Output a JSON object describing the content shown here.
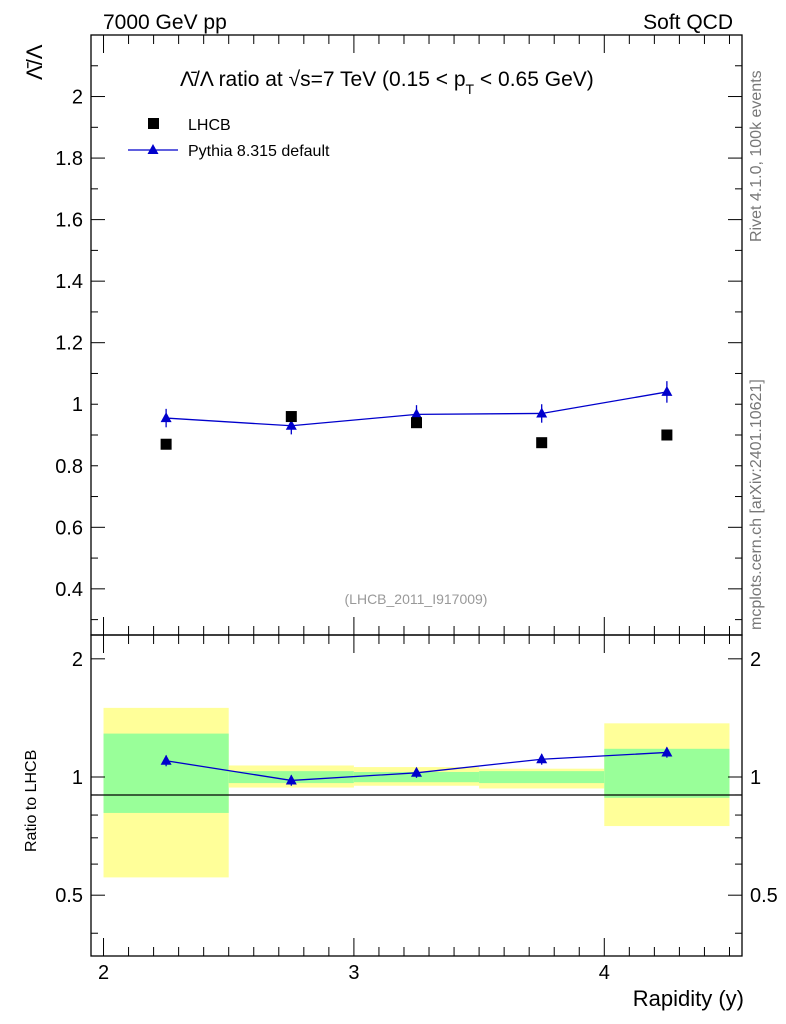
{
  "header": {
    "left": "7000 GeV pp",
    "right": "Soft QCD"
  },
  "side_labels": {
    "rivet": "Rivet 4.1.0,  100k events",
    "mcplots": "mcplots.cern.ch [arXiv:2401.10621]"
  },
  "chart_data": [
    {
      "type": "scatter",
      "title_main": "Λ̄/Λ ratio at √s=7 TeV (0.15 < p",
      "title_sub": "T",
      "title_end": " < 0.65 GeV)",
      "ylabel": "Λ̄/Λ",
      "watermark": "(LHCB_2011_I917009)",
      "xlim": [
        1.95,
        4.55
      ],
      "ylim": [
        0.25,
        2.2
      ],
      "yticks": [
        0.4,
        0.6,
        0.8,
        1,
        1.2,
        1.4,
        1.6,
        1.8,
        2
      ],
      "ytick_labels": [
        "0.4",
        "0.6",
        "0.8",
        "1",
        "1.2",
        "1.4",
        "1.6",
        "1.8",
        "2"
      ],
      "legend": [
        {
          "name": "LHCB",
          "marker": "square"
        },
        {
          "name": "Pythia 8.315 default",
          "marker": "triangle"
        }
      ],
      "series": [
        {
          "name": "LHCB",
          "color": "#000000",
          "x": [
            2.25,
            2.75,
            3.25,
            3.75,
            4.25
          ],
          "y": [
            0.87,
            0.96,
            0.94,
            0.875,
            0.9
          ]
        },
        {
          "name": "Pythia 8.315 default",
          "color": "#0000cc",
          "x": [
            2.25,
            2.75,
            3.25,
            3.75,
            4.25
          ],
          "y": [
            0.955,
            0.93,
            0.967,
            0.97,
            1.04
          ],
          "yerr": [
            0.03,
            0.028,
            0.03,
            0.03,
            0.035
          ]
        }
      ]
    },
    {
      "type": "scatter",
      "ylabel": "Ratio to LHCB",
      "xlabel": "Rapidity (y)",
      "xlim": [
        1.95,
        4.55
      ],
      "ylim": [
        0.35,
        2.3
      ],
      "yscale": "log",
      "xticks": [
        2,
        3,
        4
      ],
      "xtick_labels": [
        "2",
        "3",
        "4"
      ],
      "yticks": [
        0.5,
        1,
        2
      ],
      "ytick_labels": [
        "0.5",
        "1",
        "2"
      ],
      "bands": [
        {
          "x0": 2.0,
          "x1": 2.5,
          "green": [
            0.81,
            1.29
          ],
          "yellow": [
            0.555,
            1.5
          ]
        },
        {
          "x0": 2.5,
          "x1": 3.0,
          "green": [
            0.965,
            1.035
          ],
          "yellow": [
            0.94,
            1.07
          ]
        },
        {
          "x0": 3.0,
          "x1": 3.5,
          "green": [
            0.97,
            1.03
          ],
          "yellow": [
            0.95,
            1.06
          ]
        },
        {
          "x0": 3.5,
          "x1": 4.0,
          "green": [
            0.965,
            1.035
          ],
          "yellow": [
            0.935,
            1.05
          ]
        },
        {
          "x0": 4.0,
          "x1": 4.5,
          "green": [
            0.885,
            1.18
          ],
          "yellow": [
            0.75,
            1.37
          ]
        }
      ],
      "series": [
        {
          "name": "Pythia 8.315 default / LHCB",
          "color": "#0000cc",
          "x": [
            2.25,
            2.75,
            3.25,
            3.75,
            4.25
          ],
          "y": [
            1.1,
            0.98,
            1.025,
            1.11,
            1.155
          ],
          "yerr": [
            0.035,
            0.03,
            0.03,
            0.035,
            0.035
          ]
        }
      ]
    }
  ]
}
